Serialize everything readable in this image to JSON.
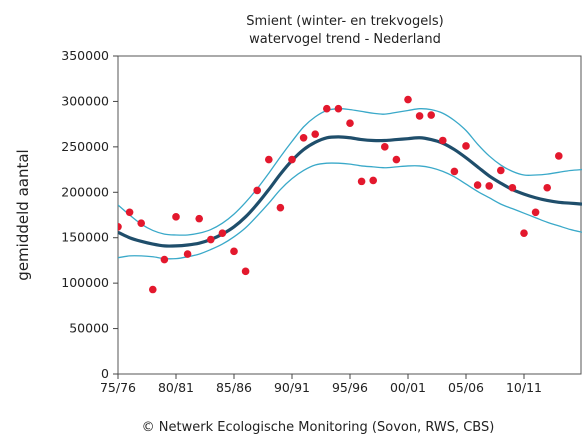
{
  "chart_data": {
    "type": "line",
    "title": "Smient (winter- en trekvogels)",
    "subtitle": "watervogel trend - Nederland",
    "xlabel": "",
    "ylabel": "gemiddeld aantal",
    "ylim": [
      0,
      350000
    ],
    "yticks": [
      0,
      50000,
      100000,
      150000,
      200000,
      250000,
      300000,
      350000
    ],
    "xticks": [
      "75/76",
      "80/81",
      "85/86",
      "90/91",
      "95/96",
      "00/01",
      "05/06",
      "10/11"
    ],
    "xlim_seasons": [
      1975,
      2015
    ],
    "grid": false,
    "x": [
      1975,
      1976,
      1977,
      1978,
      1979,
      1980,
      1981,
      1982,
      1983,
      1984,
      1985,
      1986,
      1987,
      1988,
      1989,
      1990,
      1991,
      1992,
      1993,
      1994,
      1995,
      1996,
      1997,
      1998,
      1999,
      2000,
      2001,
      2002,
      2003,
      2004,
      2005,
      2006,
      2007,
      2008,
      2009,
      2010,
      2011,
      2012,
      2013,
      2014,
      2015
    ],
    "series": [
      {
        "values": [
          156000,
          150000,
          146000,
          143000,
          141000,
          141000,
          142000,
          144000,
          148000,
          154000,
          162000,
          173000,
          187000,
          203000,
          220000,
          235000,
          247000,
          255000,
          260000,
          261000,
          260000,
          258000,
          257000,
          257000,
          258000,
          259000,
          260000,
          258000,
          254000,
          247000,
          238000,
          228000,
          218000,
          210000,
          203000,
          198000,
          194000,
          191000,
          189000,
          188000,
          187000
        ],
        "role": "trend",
        "color": "#1f4e6b"
      },
      {
        "values": [
          186000,
          175000,
          165000,
          158000,
          154000,
          153000,
          153000,
          155000,
          159000,
          166000,
          176000,
          189000,
          204000,
          221000,
          239000,
          256000,
          272000,
          283000,
          290000,
          292000,
          291000,
          289000,
          287000,
          286000,
          288000,
          290000,
          292000,
          291000,
          287000,
          279000,
          268000,
          253000,
          240000,
          230000,
          223000,
          219000,
          219000,
          220000,
          222000,
          224000,
          225000
        ],
        "role": "upper-ci",
        "color": "#3aa9c9"
      },
      {
        "values": [
          128000,
          130000,
          130000,
          129000,
          127000,
          127000,
          129000,
          132000,
          137000,
          143000,
          151000,
          161000,
          174000,
          188000,
          203000,
          215000,
          224000,
          230000,
          232000,
          232000,
          231000,
          229000,
          228000,
          227000,
          228000,
          229000,
          229000,
          227000,
          223000,
          217000,
          209000,
          201000,
          194000,
          187000,
          182000,
          177000,
          172000,
          167000,
          163000,
          159000,
          156000
        ],
        "role": "lower-ci",
        "color": "#3aa9c9"
      }
    ],
    "points": {
      "x": [
        1975,
        1976,
        1977,
        1978,
        1979,
        1980,
        1981,
        1982,
        1983,
        1984,
        1985,
        1986,
        1987,
        1988,
        1989,
        1990,
        1991,
        1992,
        1993,
        1994,
        1995,
        1996,
        1997,
        1998,
        1999,
        2000,
        2001,
        2002,
        2003,
        2004,
        2005,
        2006,
        2007,
        2008,
        2009,
        2010,
        2011,
        2012,
        2013
      ],
      "y": [
        162000,
        178000,
        166000,
        93000,
        126000,
        173000,
        132000,
        171000,
        148000,
        155000,
        135000,
        113000,
        202000,
        236000,
        183000,
        236000,
        260000,
        264000,
        292000,
        292000,
        276000,
        212000,
        213000,
        250000,
        236000,
        302000,
        284000,
        285000,
        257000,
        223000,
        251000,
        208000,
        207000,
        224000,
        205000,
        155000,
        178000,
        205000,
        240000
      ],
      "color": "#e3182d"
    }
  },
  "footer": {
    "copyright": "© Netwerk Ecologische Monitoring (Sovon, RWS, CBS)"
  }
}
